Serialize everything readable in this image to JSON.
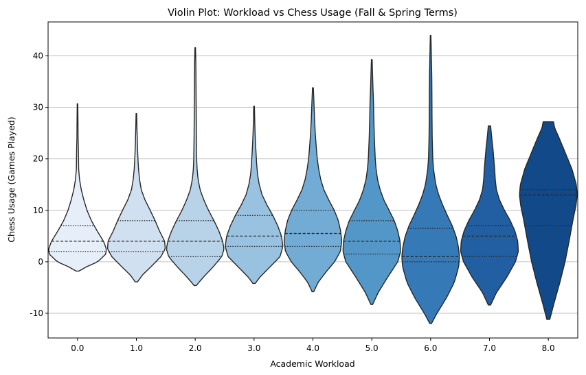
{
  "chart_data": {
    "type": "violin",
    "title": "Violin Plot: Workload vs Chess Usage (Fall & Spring Terms)",
    "xlabel": "Academic Workload",
    "ylabel": "Chess Usage (Games Played)",
    "categories": [
      "0.0",
      "1.0",
      "2.0",
      "3.0",
      "4.0",
      "5.0",
      "6.0",
      "7.0",
      "8.0"
    ],
    "ylim": [
      -14.8,
      46.6
    ],
    "yticks": [
      -10,
      0,
      10,
      20,
      30,
      40
    ],
    "grid": "horizontal",
    "inner": "quartile",
    "colors": [
      "#e6eff9",
      "#d0e0f1",
      "#b8d3e8",
      "#98c2df",
      "#72acd4",
      "#5297c7",
      "#3579b7",
      "#225ea2",
      "#124a89"
    ],
    "violins": [
      {
        "category": "0.0",
        "min": -1.8,
        "max": 30.7,
        "q1": 2,
        "median": 4,
        "q3": 7,
        "profile": [
          [
            -1.8,
            0.05
          ],
          [
            -1,
            0.3
          ],
          [
            0,
            0.7
          ],
          [
            1.5,
            0.98
          ],
          [
            2.5,
            1.0
          ],
          [
            4,
            0.9
          ],
          [
            6,
            0.68
          ],
          [
            8,
            0.48
          ],
          [
            10,
            0.33
          ],
          [
            12,
            0.22
          ],
          [
            14,
            0.13
          ],
          [
            16,
            0.07
          ],
          [
            18,
            0.04
          ],
          [
            20,
            0.035
          ],
          [
            22,
            0.03
          ],
          [
            24,
            0.02
          ],
          [
            26,
            0.018
          ],
          [
            28,
            0.015
          ],
          [
            30.7,
            0.01
          ]
        ]
      },
      {
        "category": "1.0",
        "min": -3.9,
        "max": 28.8,
        "q1": 2,
        "median": 4,
        "q3": 8,
        "profile": [
          [
            -3.9,
            0.04
          ],
          [
            -2.5,
            0.22
          ],
          [
            -1,
            0.5
          ],
          [
            1,
            0.85
          ],
          [
            2.5,
            1.0
          ],
          [
            4,
            0.98
          ],
          [
            6,
            0.8
          ],
          [
            8,
            0.65
          ],
          [
            10,
            0.48
          ],
          [
            12,
            0.3
          ],
          [
            14,
            0.17
          ],
          [
            16,
            0.11
          ],
          [
            18,
            0.075
          ],
          [
            20,
            0.055
          ],
          [
            22,
            0.04
          ],
          [
            24,
            0.03
          ],
          [
            26,
            0.02
          ],
          [
            28.8,
            0.01
          ]
        ]
      },
      {
        "category": "2.0",
        "min": -4.6,
        "max": 41.6,
        "q1": 1,
        "median": 4,
        "q3": 8,
        "profile": [
          [
            -4.6,
            0.04
          ],
          [
            -3,
            0.28
          ],
          [
            -1,
            0.62
          ],
          [
            1,
            0.92
          ],
          [
            2.5,
            1.0
          ],
          [
            4,
            0.95
          ],
          [
            6,
            0.82
          ],
          [
            8,
            0.65
          ],
          [
            10,
            0.46
          ],
          [
            12,
            0.3
          ],
          [
            14,
            0.17
          ],
          [
            16,
            0.1
          ],
          [
            18,
            0.065
          ],
          [
            20,
            0.05
          ],
          [
            24,
            0.04
          ],
          [
            28,
            0.035
          ],
          [
            32,
            0.03
          ],
          [
            36,
            0.025
          ],
          [
            39,
            0.02
          ],
          [
            41.6,
            0.01
          ]
        ]
      },
      {
        "category": "3.0",
        "min": -4.2,
        "max": 30.2,
        "q1": 3,
        "median": 5,
        "q3": 9,
        "profile": [
          [
            -4.2,
            0.04
          ],
          [
            -3,
            0.2
          ],
          [
            -1,
            0.55
          ],
          [
            1,
            0.9
          ],
          [
            3,
            1.0
          ],
          [
            5,
            0.95
          ],
          [
            7,
            0.82
          ],
          [
            9,
            0.65
          ],
          [
            11,
            0.45
          ],
          [
            13,
            0.28
          ],
          [
            15,
            0.18
          ],
          [
            17,
            0.12
          ],
          [
            19,
            0.09
          ],
          [
            21,
            0.07
          ],
          [
            23,
            0.05
          ],
          [
            25,
            0.035
          ],
          [
            27,
            0.025
          ],
          [
            30.2,
            0.012
          ]
        ]
      },
      {
        "category": "4.0",
        "min": -5.8,
        "max": 33.8,
        "q1": 3,
        "median": 5.5,
        "q3": 10,
        "profile": [
          [
            -5.8,
            0.03
          ],
          [
            -4,
            0.18
          ],
          [
            -2,
            0.45
          ],
          [
            0,
            0.75
          ],
          [
            2,
            0.95
          ],
          [
            4,
            1.0
          ],
          [
            6,
            0.96
          ],
          [
            8,
            0.88
          ],
          [
            10,
            0.74
          ],
          [
            12,
            0.55
          ],
          [
            14,
            0.38
          ],
          [
            16,
            0.27
          ],
          [
            18,
            0.2
          ],
          [
            20,
            0.15
          ],
          [
            22,
            0.12
          ],
          [
            25,
            0.08
          ],
          [
            28,
            0.055
          ],
          [
            31,
            0.035
          ],
          [
            33.8,
            0.015
          ]
        ]
      },
      {
        "category": "5.0",
        "min": -8.3,
        "max": 39.3,
        "q1": 1.5,
        "median": 4,
        "q3": 8,
        "profile": [
          [
            -8.3,
            0.03
          ],
          [
            -6,
            0.22
          ],
          [
            -3,
            0.55
          ],
          [
            0,
            0.9
          ],
          [
            2,
            1.0
          ],
          [
            4,
            0.98
          ],
          [
            6,
            0.9
          ],
          [
            8,
            0.78
          ],
          [
            10,
            0.6
          ],
          [
            12,
            0.42
          ],
          [
            14,
            0.29
          ],
          [
            16,
            0.2
          ],
          [
            18,
            0.15
          ],
          [
            20,
            0.12
          ],
          [
            24,
            0.09
          ],
          [
            28,
            0.07
          ],
          [
            31,
            0.06
          ],
          [
            34,
            0.04
          ],
          [
            37,
            0.025
          ],
          [
            39.3,
            0.012
          ]
        ]
      },
      {
        "category": "6.0",
        "min": -12,
        "max": 44,
        "q1": 0,
        "median": 1,
        "q3": 6.5,
        "profile": [
          [
            -12,
            0.03
          ],
          [
            -10,
            0.22
          ],
          [
            -7,
            0.55
          ],
          [
            -4,
            0.82
          ],
          [
            -1,
            0.97
          ],
          [
            1,
            1.0
          ],
          [
            3,
            0.96
          ],
          [
            5,
            0.88
          ],
          [
            7,
            0.75
          ],
          [
            9,
            0.58
          ],
          [
            11,
            0.42
          ],
          [
            13,
            0.28
          ],
          [
            15,
            0.18
          ],
          [
            18,
            0.1
          ],
          [
            20,
            0.075
          ],
          [
            24,
            0.055
          ],
          [
            28,
            0.048
          ],
          [
            32,
            0.045
          ],
          [
            36,
            0.04
          ],
          [
            40,
            0.025
          ],
          [
            44,
            0.01
          ]
        ]
      },
      {
        "category": "7.0",
        "min": -8.4,
        "max": 26.4,
        "q1": 1,
        "median": 5,
        "q3": 7,
        "profile": [
          [
            -8.4,
            0.04
          ],
          [
            -6,
            0.24
          ],
          [
            -3,
            0.6
          ],
          [
            0,
            0.9
          ],
          [
            2,
            1.0
          ],
          [
            4,
            0.98
          ],
          [
            6,
            0.88
          ],
          [
            8,
            0.72
          ],
          [
            10,
            0.52
          ],
          [
            12,
            0.35
          ],
          [
            14,
            0.24
          ],
          [
            16,
            0.2
          ],
          [
            18,
            0.18
          ],
          [
            20,
            0.15
          ],
          [
            22,
            0.12
          ],
          [
            24,
            0.08
          ],
          [
            26.4,
            0.04
          ]
        ]
      },
      {
        "category": "8.0",
        "min": -11.2,
        "max": 27.2,
        "q1": 7,
        "median": 13,
        "q3": 14,
        "profile": [
          [
            -11.2,
            0.05
          ],
          [
            -8,
            0.2
          ],
          [
            -4,
            0.4
          ],
          [
            0,
            0.58
          ],
          [
            4,
            0.72
          ],
          [
            8,
            0.85
          ],
          [
            11,
            0.96
          ],
          [
            13,
            1.0
          ],
          [
            15,
            0.97
          ],
          [
            18,
            0.82
          ],
          [
            21,
            0.6
          ],
          [
            24,
            0.38
          ],
          [
            26,
            0.22
          ],
          [
            27.2,
            0.18
          ]
        ]
      }
    ]
  }
}
